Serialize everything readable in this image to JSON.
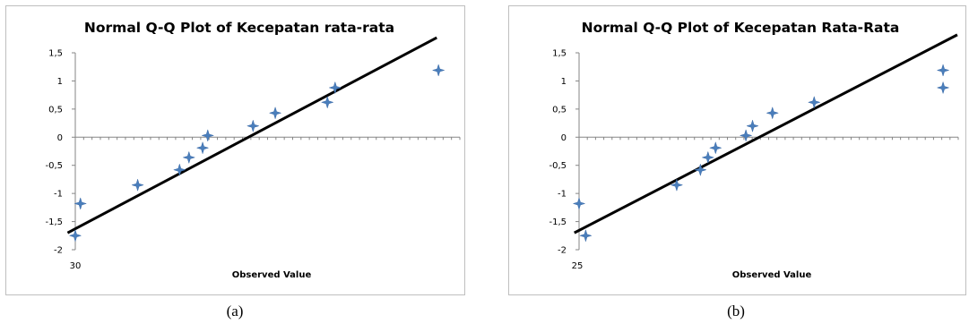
{
  "chart_data": [
    {
      "type": "scatter",
      "title": "Normal Q-Q Plot of Kecepatan rata-rata",
      "xlabel": "Observed Value",
      "ylabel": "",
      "caption": "(a)",
      "x_tick_label": "30",
      "ylim": [
        -2,
        1.5
      ],
      "yticks": [
        "1,5",
        "1",
        "0,5",
        "0",
        "-0,5",
        "-1",
        "-1,5",
        "-2"
      ],
      "xlim": [
        30,
        75
      ],
      "grid": false,
      "marker_color": "#4a7ebb",
      "line_color": "#000000",
      "points": [
        {
          "x": 30.0,
          "y": -1.75
        },
        {
          "x": 30.6,
          "y": -1.18
        },
        {
          "x": 37.3,
          "y": -0.85
        },
        {
          "x": 42.2,
          "y": -0.58
        },
        {
          "x": 43.3,
          "y": -0.36
        },
        {
          "x": 44.9,
          "y": -0.19
        },
        {
          "x": 45.5,
          "y": 0.03
        },
        {
          "x": 50.8,
          "y": 0.2
        },
        {
          "x": 53.4,
          "y": 0.43
        },
        {
          "x": 59.5,
          "y": 0.62
        },
        {
          "x": 60.4,
          "y": 0.88
        },
        {
          "x": 72.5,
          "y": 1.19
        }
      ],
      "reference_line": {
        "x1": 29.1,
        "y1": -1.7,
        "x2": 72.3,
        "y2": 1.77
      }
    },
    {
      "type": "scatter",
      "title": "Normal Q-Q Plot of Kecepatan Rata-Rata",
      "xlabel": "Observed Value",
      "ylabel": "",
      "caption": "(b)",
      "x_tick_label": "25",
      "ylim": [
        -2,
        1.5
      ],
      "yticks": [
        "1,5",
        "1",
        "0,5",
        "0",
        "-0,5",
        "-1",
        "-1,5",
        "-2"
      ],
      "xlim": [
        25,
        65
      ],
      "grid": false,
      "marker_color": "#4a7ebb",
      "line_color": "#000000",
      "points": [
        {
          "x": 25.0,
          "y": -1.18
        },
        {
          "x": 25.7,
          "y": -1.75
        },
        {
          "x": 35.3,
          "y": -0.85
        },
        {
          "x": 37.8,
          "y": -0.58
        },
        {
          "x": 38.6,
          "y": -0.36
        },
        {
          "x": 39.4,
          "y": -0.19
        },
        {
          "x": 42.6,
          "y": 0.03
        },
        {
          "x": 43.3,
          "y": 0.2
        },
        {
          "x": 45.4,
          "y": 0.43
        },
        {
          "x": 49.8,
          "y": 0.62
        },
        {
          "x": 63.4,
          "y": 0.88
        },
        {
          "x": 63.4,
          "y": 1.19
        }
      ],
      "reference_line": {
        "x1": 24.5,
        "y1": -1.7,
        "x2": 64.9,
        "y2": 1.82
      }
    }
  ]
}
